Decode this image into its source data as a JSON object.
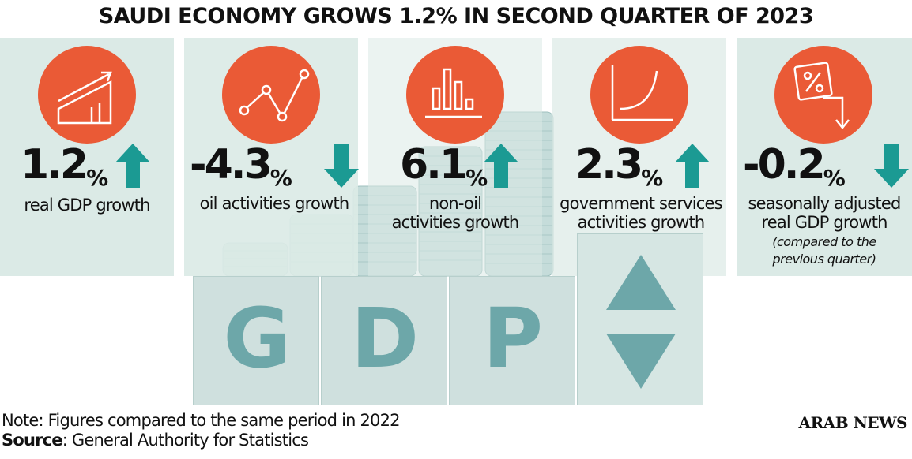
{
  "title": "SAUDI ECONOMY GROWS 1.2% IN SECOND QUARTER OF 2023",
  "colors": {
    "panel": "#dbeae6",
    "circle": "#ea5a36",
    "arrow": "#1b9a93",
    "block": "#cfe0de",
    "block_letter": "#6da7a9",
    "coins": "#b9d4d2"
  },
  "stats": [
    {
      "value": "1.2",
      "unit": "%",
      "direction": "up",
      "icon": "growth-chart-icon",
      "label": "real GDP growth"
    },
    {
      "value": "-4.3",
      "unit": "%",
      "direction": "down",
      "icon": "line-graph-icon",
      "label": "oil activities growth"
    },
    {
      "value": "6.1",
      "unit": "%",
      "direction": "up",
      "icon": "bar-chart-icon",
      "label_line1": "non-oil",
      "label_line2": "activities growth"
    },
    {
      "value": "2.3",
      "unit": "%",
      "direction": "up",
      "icon": "curve-chart-icon",
      "label_line1": "government services",
      "label_line2": "activities growth"
    },
    {
      "value": "-0.2",
      "unit": "%",
      "direction": "down",
      "icon": "percent-down-icon",
      "label_line1": "seasonally adjusted",
      "label_line2": "real GDP growth",
      "note_line1": "(compared to the",
      "note_line2": "previous quarter)"
    }
  ],
  "blocks": [
    "G",
    "D",
    "P"
  ],
  "footer": {
    "note": "Note: Figures compared to the same period in 2022",
    "source_label": "Source",
    "source_text": ": General Authority for Statistics",
    "brand": "ARAB NEWS"
  }
}
